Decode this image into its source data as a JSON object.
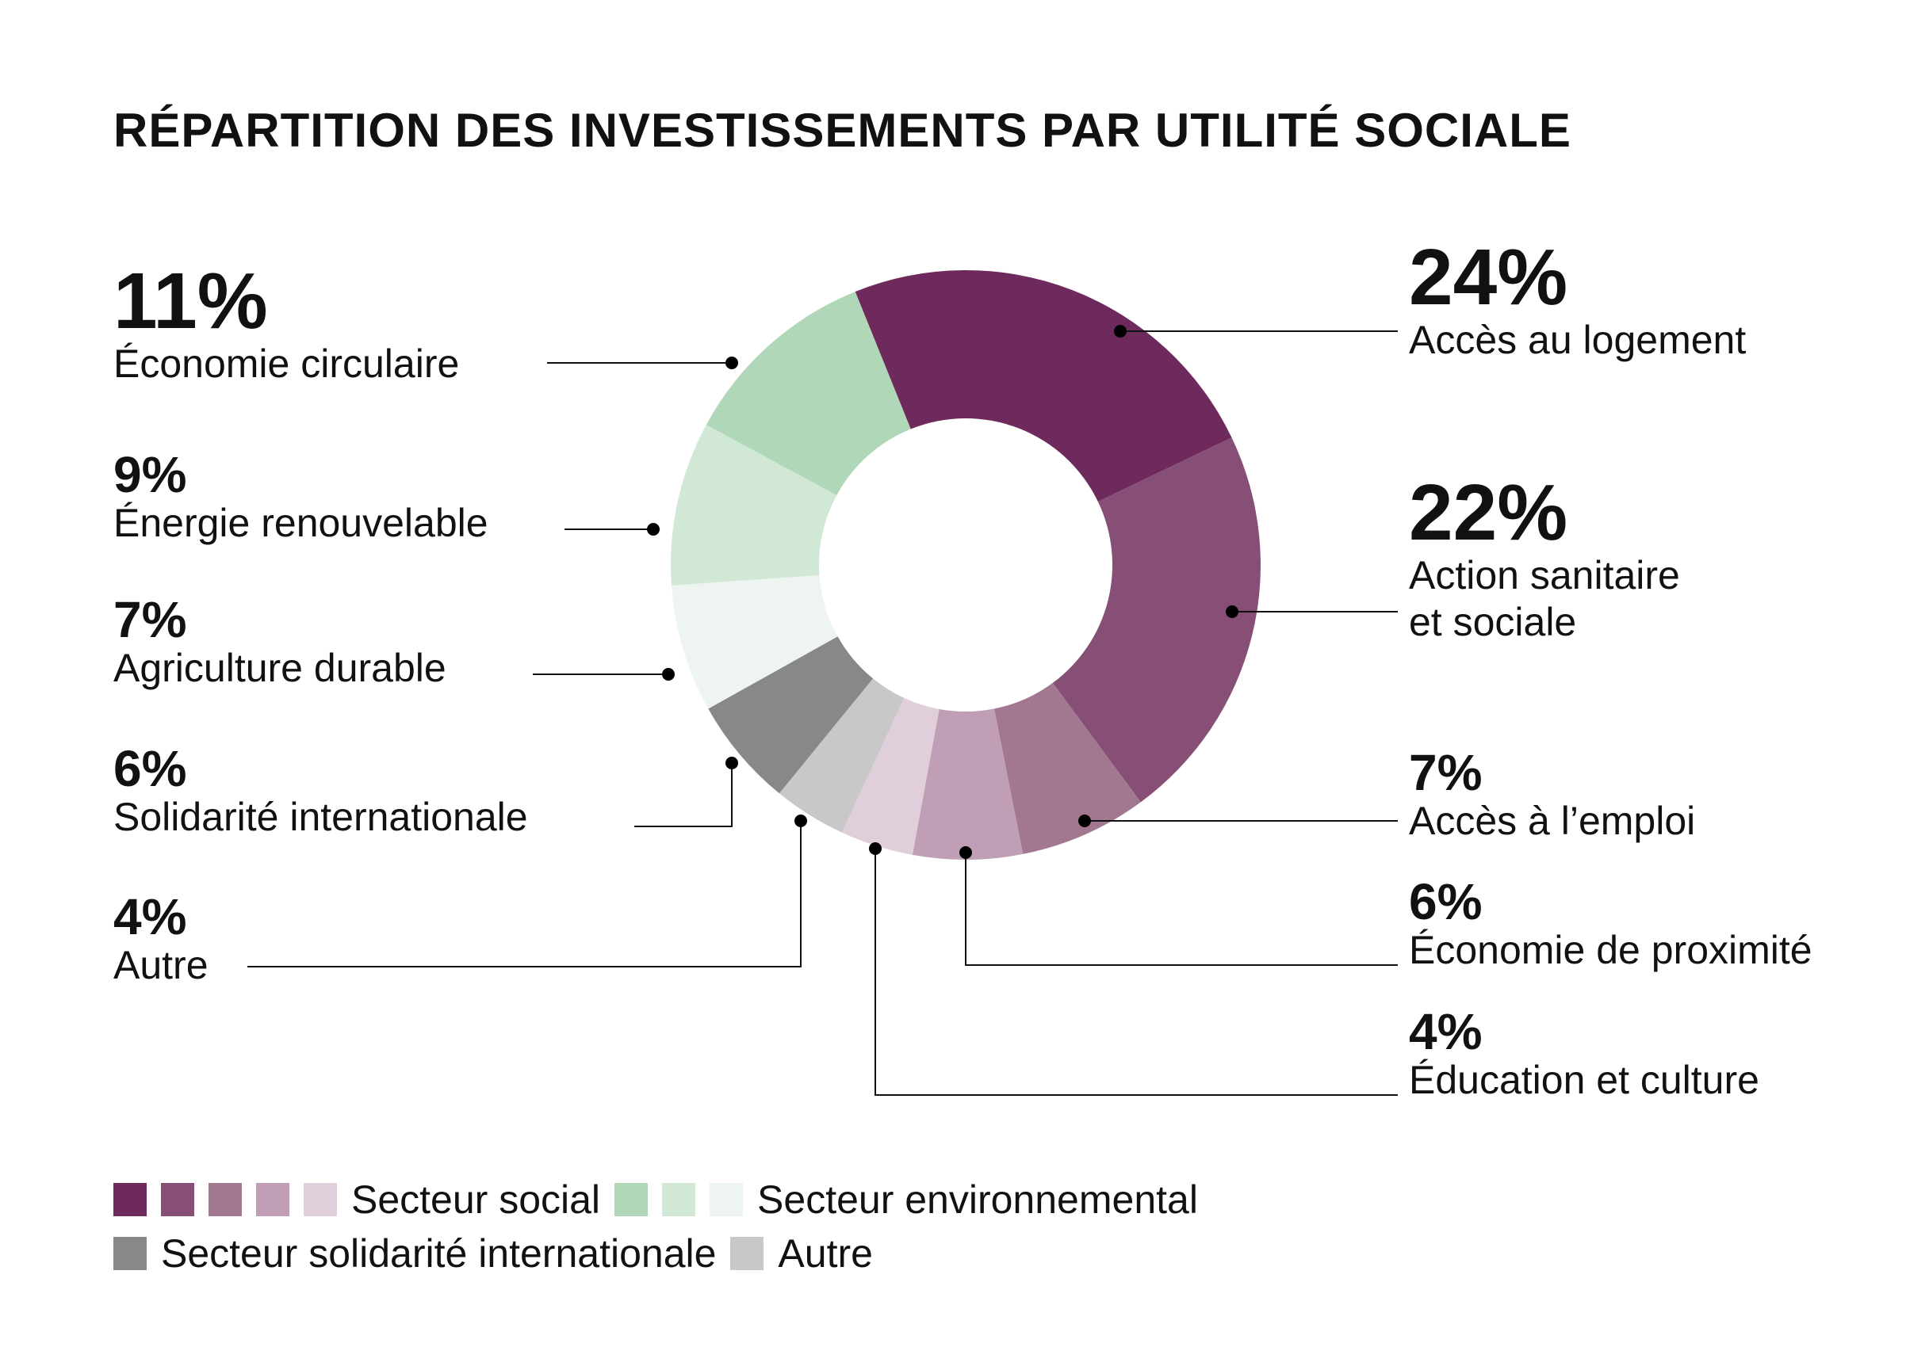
{
  "chart_data": {
    "type": "donut",
    "title": "RÉPARTITION DES INVESTISSEMENTS PAR UTILITÉ SOCIALE",
    "slices": [
      {
        "pct": "24%",
        "label": [
          "Accès au logement"
        ],
        "value": 24,
        "color": "#6e2a5c"
      },
      {
        "pct": "22%",
        "label": [
          "Action sanitaire",
          "et sociale"
        ],
        "value": 22,
        "color": "#874f76"
      },
      {
        "pct": "7%",
        "label": [
          "Accès à l’emploi"
        ],
        "value": 7,
        "color": "#a27890"
      },
      {
        "pct": "6%",
        "label": [
          "Économie de proximité"
        ],
        "value": 6,
        "color": "#c09eb5"
      },
      {
        "pct": "4%",
        "label": [
          "Éducation et culture"
        ],
        "value": 4,
        "color": "#e0cfdb"
      },
      {
        "pct": "4%",
        "label": [
          "Autre"
        ],
        "value": 4,
        "color": "#c8c8c8"
      },
      {
        "pct": "6%",
        "label": [
          "Solidarité internationale"
        ],
        "value": 6,
        "color": "#888888"
      },
      {
        "pct": "7%",
        "label": [
          "Agriculture durable"
        ],
        "value": 7,
        "color": "#eef5f0"
      },
      {
        "pct": "9%",
        "label": [
          "Énergie renouvelable"
        ],
        "value": 9,
        "color": "#d2e8d6"
      },
      {
        "pct": "11%",
        "label": [
          "Économie circulaire"
        ],
        "value": 11,
        "color": "#b0d7b7"
      }
    ],
    "legend": [
      {
        "label": "Secteur social",
        "colors": [
          "#6e2a5c",
          "#874f76",
          "#a27890",
          "#c09eb5",
          "#e0cfdb"
        ]
      },
      {
        "label": "Secteur environnemental",
        "colors": [
          "#b0d7b7",
          "#d2e8d6",
          "#eef5f0"
        ]
      },
      {
        "label": "Secteur solidarité internationale",
        "colors": [
          "#888888"
        ]
      },
      {
        "label": "Autre",
        "colors": [
          "#c8c8c8"
        ]
      }
    ]
  }
}
